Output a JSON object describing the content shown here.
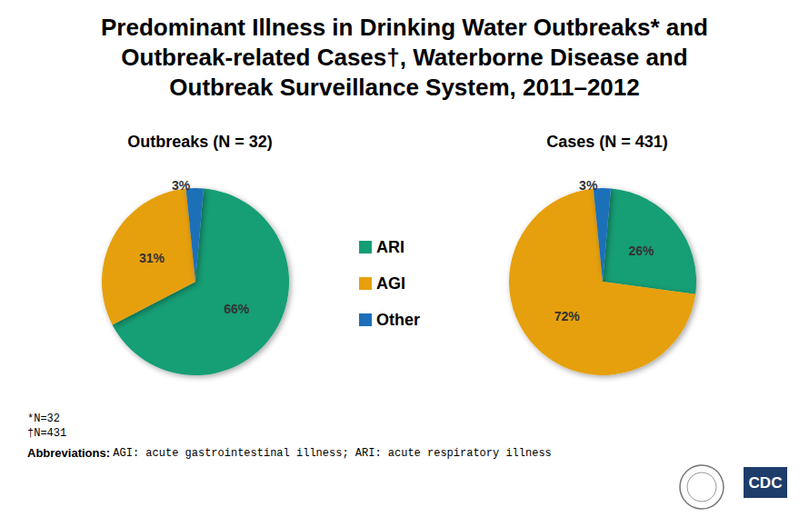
{
  "title": "Predominant Illness in Drinking Water Outbreaks* and\nOutbreak-related Cases†, Waterborne Disease and\nOutbreak Surveillance System, 2011–2012",
  "chart_data": [
    {
      "type": "pie",
      "title": "Outbreaks (N = 32)",
      "categories": [
        "ARI",
        "AGI",
        "Other"
      ],
      "values": [
        66,
        31,
        3
      ],
      "value_labels": [
        "66%",
        "31%",
        "3%"
      ],
      "colors": [
        "#149e74",
        "#e6a00c",
        "#1c6fb8"
      ],
      "data_labels": true,
      "legend": "center"
    },
    {
      "type": "pie",
      "title": "Cases (N = 431)",
      "categories": [
        "ARI",
        "AGI",
        "Other"
      ],
      "values": [
        26,
        72,
        3
      ],
      "value_labels": [
        "26%",
        "72%",
        "3%"
      ],
      "colors": [
        "#149e74",
        "#e6a00c",
        "#1c6fb8"
      ],
      "data_labels": true,
      "legend": "center"
    }
  ],
  "footnotes": [
    "*N=32",
    "†N=431"
  ],
  "abbreviations": {
    "label": "Abbreviations:",
    "text": "AGI: acute gastrointestinal illness; ARI: acute respiratory illness"
  },
  "logo": "CDC"
}
